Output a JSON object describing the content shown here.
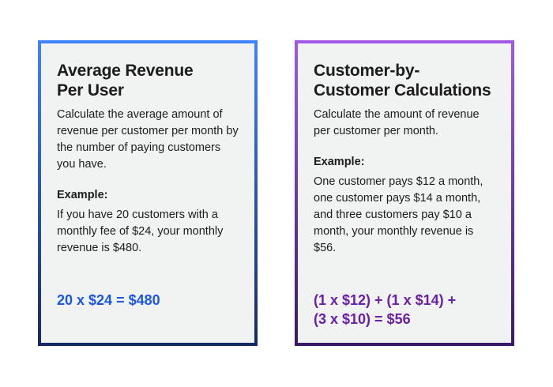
{
  "cards": [
    {
      "title_line1": "Average Revenue",
      "title_line2": "Per User",
      "description": "Calculate the average amount of revenue per customer per month by the number of paying customers you have.",
      "example_label": "Example:",
      "example_text": "If you have 20 customers with a monthly fee of $24, your monthly revenue is $480.",
      "formula_line1": "20 x $24 = $480",
      "formula_line2": "",
      "formula_color": "#1a57e8",
      "border_top_color": "#3f84ff",
      "border_bottom_color": "#142a63"
    },
    {
      "title_line1": "Customer-by-",
      "title_line2": "Customer Calculations",
      "description": "Calculate the amount of revenue per customer per month.",
      "example_label": "Example:",
      "example_text": "One customer pays $12 a month, one customer pays $14 a month, and three customers pay $10 a month, your monthly revenue is $56.",
      "formula_line1": "(1 x $12) + (1 x $14) +",
      "formula_line2": "(3 x $10) = $56",
      "formula_color": "#6a1fa8",
      "border_top_color": "#a259e6",
      "border_bottom_color": "#3a1868"
    }
  ]
}
